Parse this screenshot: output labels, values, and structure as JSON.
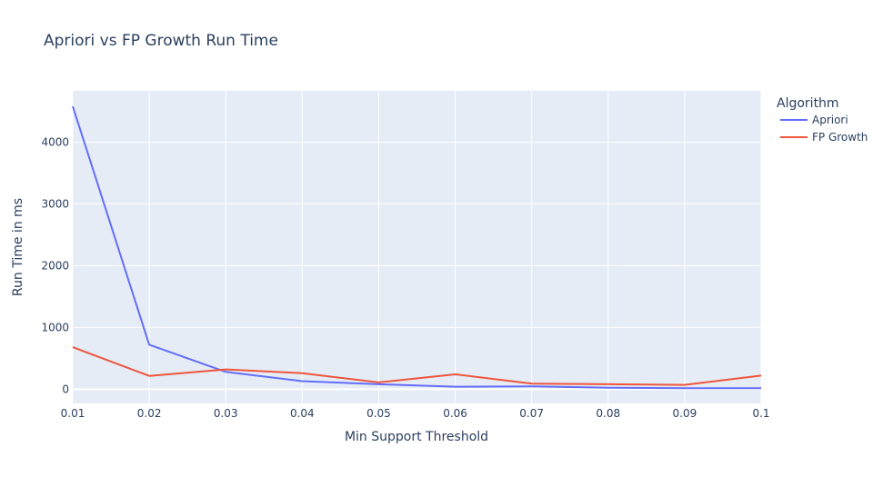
{
  "chart_data": {
    "type": "line",
    "title": "Apriori vs FP Growth Run Time",
    "xlabel": "Min Support Threshold",
    "ylabel": "Run Time in ms",
    "x": [
      0.01,
      0.02,
      0.03,
      0.04,
      0.05,
      0.06,
      0.07,
      0.08,
      0.09,
      0.1
    ],
    "x_tick_labels": [
      "0.01",
      "0.02",
      "0.03",
      "0.04",
      "0.05",
      "0.06",
      "0.07",
      "0.08",
      "0.09",
      "0.1"
    ],
    "y_ticks": [
      0,
      1000,
      2000,
      3000,
      4000
    ],
    "y_tick_labels": [
      "0",
      "1000",
      "2000",
      "3000",
      "4000"
    ],
    "xlim": [
      0.01,
      0.1
    ],
    "ylim": [
      -230,
      4830
    ],
    "grid": true,
    "legend_title": "Algorithm",
    "legend_position": "right",
    "series": [
      {
        "name": "Apriori",
        "color": "#636efa",
        "values": [
          4580,
          720,
          280,
          130,
          80,
          40,
          45,
          25,
          15,
          15
        ]
      },
      {
        "name": "FP Growth",
        "color": "#ef553b",
        "values": [
          680,
          215,
          320,
          260,
          110,
          240,
          90,
          80,
          70,
          220
        ]
      }
    ],
    "colors": {
      "plot_background": "#e5ecf6",
      "grid": "#ffffff",
      "text": "#2a3f5f"
    }
  }
}
